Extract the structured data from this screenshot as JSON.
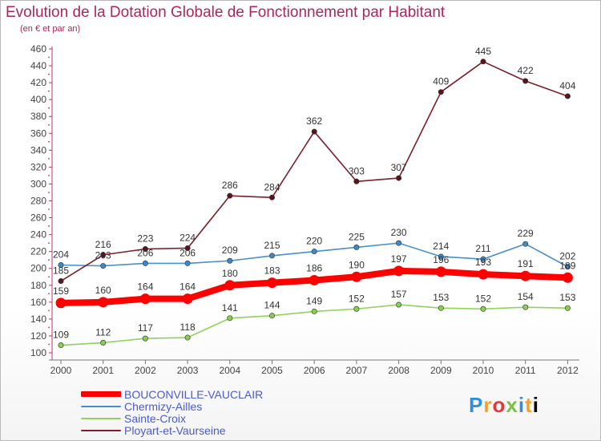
{
  "chart_data": {
    "type": "line",
    "title": "Evolution de la Dotation Globale de Fonctionnement par Habitant",
    "subtitle": "(en € et par an)",
    "xlabel": "",
    "ylabel": "",
    "categories": [
      "2000",
      "2001",
      "2002",
      "2003",
      "2004",
      "2005",
      "2006",
      "2007",
      "2008",
      "2009",
      "2010",
      "2011",
      "2012"
    ],
    "ylim": [
      100,
      460
    ],
    "yticks": [
      100,
      120,
      140,
      160,
      180,
      200,
      220,
      240,
      260,
      280,
      300,
      320,
      340,
      360,
      380,
      400,
      420,
      440,
      460
    ],
    "grid": false,
    "legend_position": "bottom-left",
    "series": [
      {
        "name": "BOUCONVILLE-VAUCLAIR",
        "color": "#ff0000",
        "values": [
          159,
          160,
          164,
          164,
          180,
          183,
          186,
          190,
          197,
          196,
          193,
          191,
          189
        ]
      },
      {
        "name": "Chermizy-Ailles",
        "color": "#4a90c8",
        "values": [
          204,
          203,
          206,
          206,
          209,
          215,
          220,
          225,
          230,
          214,
          211,
          229,
          202
        ]
      },
      {
        "name": "Sainte-Croix",
        "color": "#8fd35a",
        "values": [
          109,
          112,
          117,
          118,
          141,
          144,
          149,
          152,
          157,
          153,
          152,
          154,
          153
        ]
      },
      {
        "name": "Ployart-et-Vaurseine",
        "color": "#7a1f2b",
        "values": [
          185,
          216,
          223,
          224,
          286,
          284,
          362,
          303,
          307,
          409,
          445,
          422,
          404
        ]
      }
    ]
  },
  "logo": {
    "letters": [
      "P",
      "r",
      "o",
      "x",
      "i",
      "t",
      "i"
    ]
  }
}
